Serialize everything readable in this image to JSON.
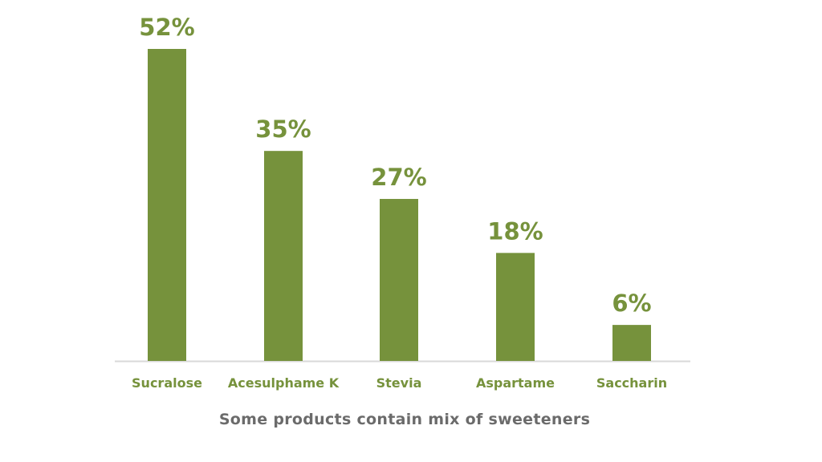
{
  "chart_data": {
    "type": "bar",
    "categories": [
      "Sucralose",
      "Acesulphame K",
      "Stevia",
      "Aspartame",
      "Saccharin"
    ],
    "values": [
      52,
      35,
      27,
      18,
      6
    ],
    "value_labels": [
      "52%",
      "35%",
      "27%",
      "18%",
      "6%"
    ],
    "unit": "%",
    "title": "",
    "xlabel": "",
    "ylabel": "",
    "ylim": [
      0,
      52
    ],
    "grid": false,
    "legend": "none",
    "colors": {
      "bar": "#76923c",
      "value_label": "#76923c",
      "category_label": "#76923c",
      "axis": "#d9d9d9"
    }
  },
  "footnote": {
    "text": "Some products contain mix of sweeteners",
    "color": "#6b6b6b"
  }
}
